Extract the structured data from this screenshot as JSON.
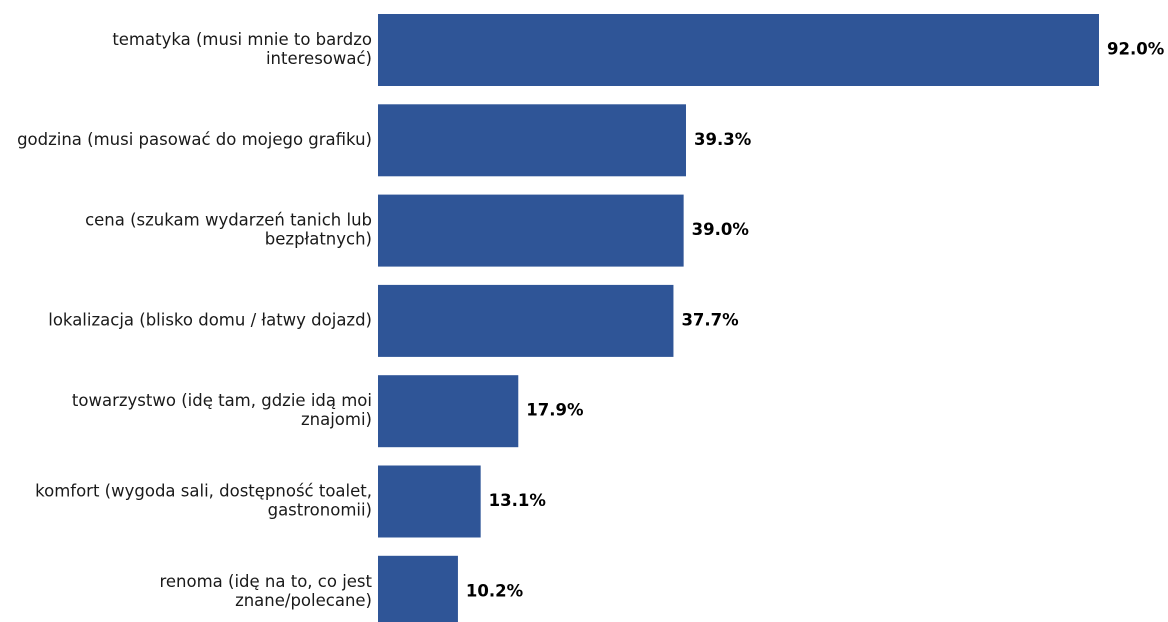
{
  "chart_data": {
    "type": "bar",
    "orientation": "horizontal",
    "categories": [
      [
        "tematyka (musi mnie to bardzo",
        "interesować)"
      ],
      [
        "godzina (musi pasować do mojego grafiku)"
      ],
      [
        "cena (szukam wydarzeń tanich lub",
        "bezpłatnych)"
      ],
      [
        "lokalizacja (blisko domu / łatwy dojazd)"
      ],
      [
        "towarzystwo (idę tam, gdzie idą moi",
        "znajomi)"
      ],
      [
        "komfort (wygoda sali, dostępność toalet,",
        "gastronomii)"
      ],
      [
        "renoma (idę na to, co jest",
        "znane/polecane)"
      ]
    ],
    "values": [
      92.0,
      39.3,
      39.0,
      37.7,
      17.9,
      13.1,
      10.2
    ],
    "value_labels": [
      "92.0%",
      "39.3%",
      "39.0%",
      "37.7%",
      "17.9%",
      "13.1%",
      "10.2%"
    ],
    "xlim": [
      0,
      92.0
    ],
    "grid": false,
    "bar_color": "#2f5597"
  }
}
